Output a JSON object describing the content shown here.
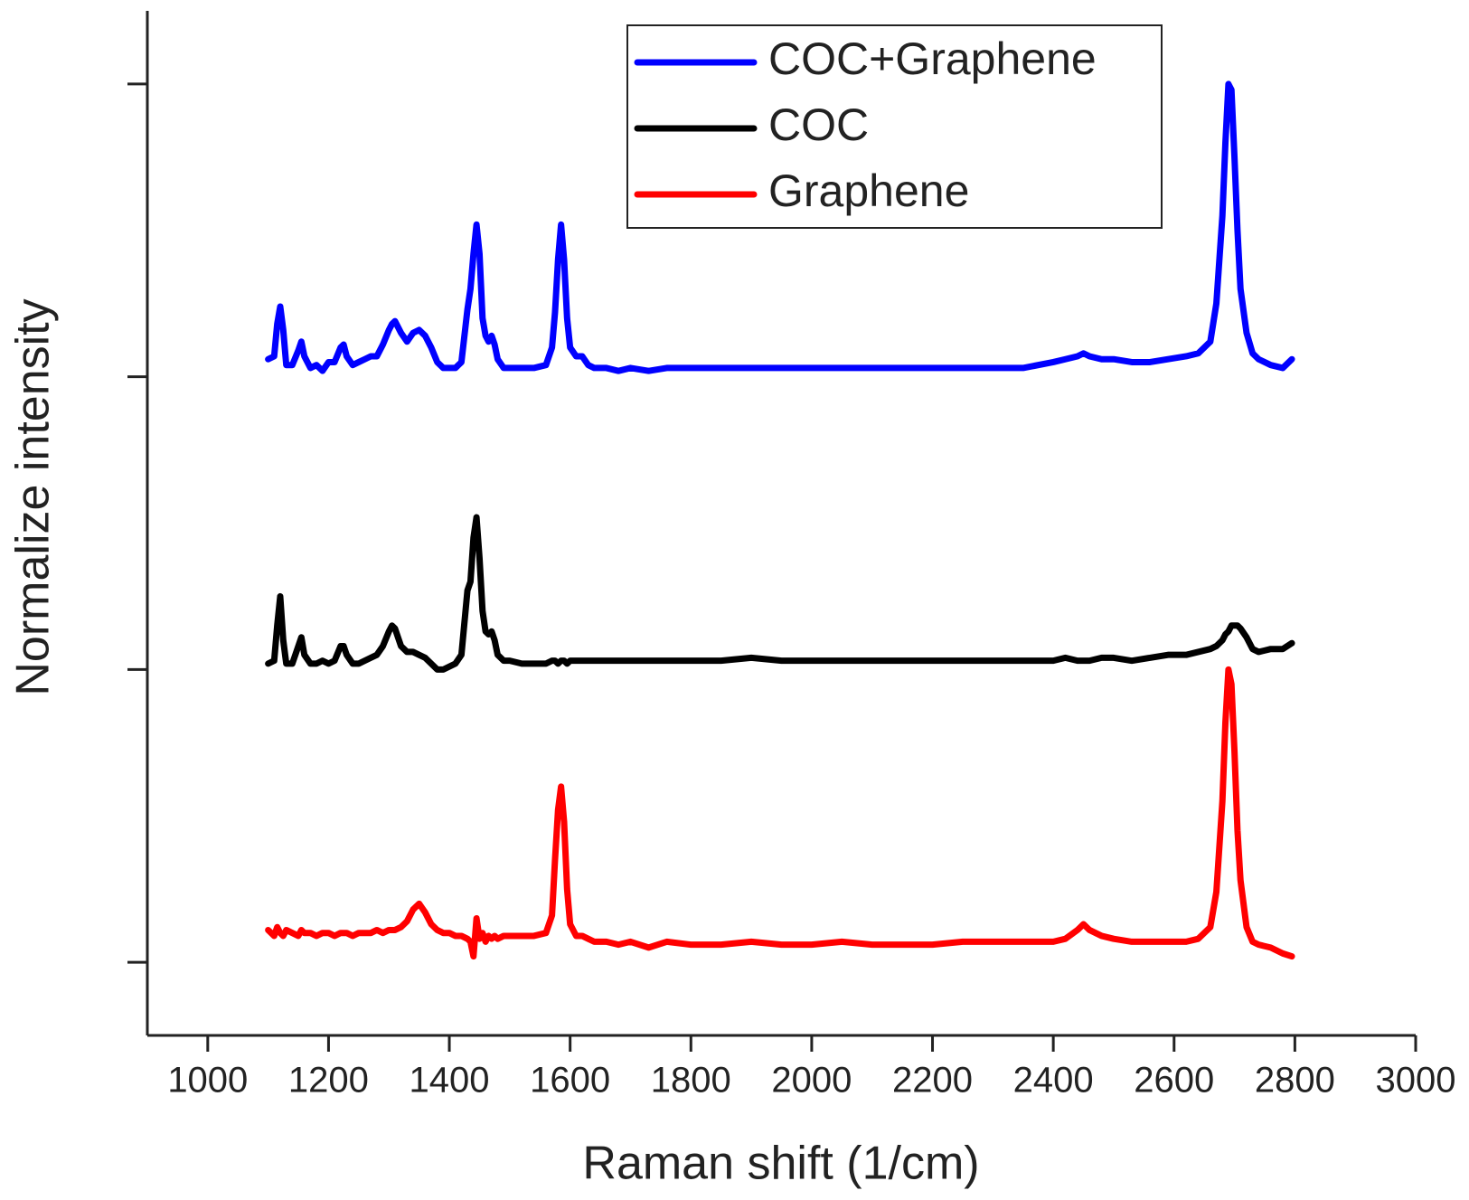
{
  "chart_data": {
    "type": "line",
    "x_label": "Raman shift (1/cm)",
    "y_label": "Normalize intensity",
    "xlim": [
      900,
      3000
    ],
    "xticks": [
      1000,
      1200,
      1400,
      1600,
      1800,
      2000,
      2200,
      2400,
      2600,
      2800,
      3000
    ],
    "ylim": [
      -0.25,
      3.25
    ],
    "yticks": [
      0,
      1,
      2,
      3
    ],
    "yticklabels": false,
    "legend": "upper right",
    "x": [
      1100,
      1110,
      1115,
      1120,
      1125,
      1130,
      1140,
      1150,
      1155,
      1160,
      1170,
      1180,
      1190,
      1200,
      1210,
      1220,
      1225,
      1230,
      1240,
      1250,
      1260,
      1270,
      1280,
      1290,
      1300,
      1305,
      1310,
      1320,
      1330,
      1340,
      1350,
      1360,
      1370,
      1380,
      1390,
      1400,
      1410,
      1420,
      1430,
      1435,
      1440,
      1445,
      1450,
      1455,
      1460,
      1465,
      1470,
      1475,
      1480,
      1490,
      1500,
      1520,
      1540,
      1560,
      1570,
      1575,
      1580,
      1585,
      1590,
      1595,
      1600,
      1610,
      1620,
      1630,
      1640,
      1660,
      1680,
      1700,
      1730,
      1760,
      1800,
      1850,
      1900,
      1950,
      2000,
      2050,
      2100,
      2150,
      2200,
      2250,
      2300,
      2350,
      2400,
      2420,
      2440,
      2450,
      2460,
      2480,
      2500,
      2530,
      2560,
      2590,
      2620,
      2640,
      2660,
      2670,
      2680,
      2685,
      2690,
      2695,
      2700,
      2705,
      2710,
      2720,
      2730,
      2740,
      2760,
      2780,
      2795
    ],
    "series": [
      {
        "name": "COC+Graphene",
        "color": "#0000ff",
        "values": [
          2.06,
          2.07,
          2.18,
          2.24,
          2.16,
          2.04,
          2.04,
          2.09,
          2.12,
          2.07,
          2.03,
          2.04,
          2.02,
          2.05,
          2.05,
          2.1,
          2.11,
          2.07,
          2.04,
          2.05,
          2.06,
          2.07,
          2.07,
          2.11,
          2.16,
          2.18,
          2.19,
          2.15,
          2.12,
          2.15,
          2.16,
          2.14,
          2.1,
          2.05,
          2.03,
          2.03,
          2.03,
          2.05,
          2.23,
          2.3,
          2.42,
          2.52,
          2.42,
          2.2,
          2.14,
          2.12,
          2.14,
          2.11,
          2.06,
          2.03,
          2.03,
          2.03,
          2.03,
          2.04,
          2.1,
          2.22,
          2.4,
          2.52,
          2.4,
          2.2,
          2.1,
          2.07,
          2.07,
          2.04,
          2.03,
          2.03,
          2.02,
          2.03,
          2.02,
          2.03,
          2.03,
          2.03,
          2.03,
          2.03,
          2.03,
          2.03,
          2.03,
          2.03,
          2.03,
          2.03,
          2.03,
          2.03,
          2.05,
          2.06,
          2.07,
          2.08,
          2.07,
          2.06,
          2.06,
          2.05,
          2.05,
          2.06,
          2.07,
          2.08,
          2.12,
          2.25,
          2.55,
          2.8,
          3.0,
          2.98,
          2.75,
          2.5,
          2.3,
          2.15,
          2.08,
          2.06,
          2.04,
          2.03,
          2.06
        ]
      },
      {
        "name": "COC",
        "color": "#000000",
        "values": [
          1.02,
          1.03,
          1.15,
          1.25,
          1.1,
          1.02,
          1.02,
          1.08,
          1.11,
          1.05,
          1.02,
          1.02,
          1.03,
          1.02,
          1.03,
          1.08,
          1.08,
          1.05,
          1.02,
          1.02,
          1.03,
          1.04,
          1.05,
          1.08,
          1.13,
          1.15,
          1.14,
          1.08,
          1.06,
          1.06,
          1.05,
          1.04,
          1.02,
          1.0,
          1.0,
          1.01,
          1.02,
          1.05,
          1.27,
          1.3,
          1.45,
          1.52,
          1.38,
          1.2,
          1.13,
          1.12,
          1.13,
          1.1,
          1.05,
          1.03,
          1.03,
          1.02,
          1.02,
          1.02,
          1.03,
          1.03,
          1.02,
          1.03,
          1.03,
          1.02,
          1.03,
          1.03,
          1.03,
          1.03,
          1.03,
          1.03,
          1.03,
          1.03,
          1.03,
          1.03,
          1.03,
          1.03,
          1.04,
          1.03,
          1.03,
          1.03,
          1.03,
          1.03,
          1.03,
          1.03,
          1.03,
          1.03,
          1.03,
          1.04,
          1.03,
          1.03,
          1.03,
          1.04,
          1.04,
          1.03,
          1.04,
          1.05,
          1.05,
          1.06,
          1.07,
          1.08,
          1.1,
          1.12,
          1.13,
          1.15,
          1.15,
          1.15,
          1.14,
          1.11,
          1.07,
          1.06,
          1.07,
          1.07,
          1.09
        ]
      },
      {
        "name": "Graphene",
        "color": "#ff0000",
        "values": [
          0.11,
          0.09,
          0.12,
          0.1,
          0.09,
          0.11,
          0.1,
          0.09,
          0.11,
          0.1,
          0.1,
          0.09,
          0.1,
          0.1,
          0.09,
          0.1,
          0.1,
          0.1,
          0.09,
          0.1,
          0.1,
          0.1,
          0.11,
          0.1,
          0.11,
          0.11,
          0.11,
          0.12,
          0.14,
          0.18,
          0.2,
          0.17,
          0.13,
          0.11,
          0.1,
          0.1,
          0.09,
          0.09,
          0.08,
          0.07,
          0.02,
          0.15,
          0.08,
          0.1,
          0.07,
          0.09,
          0.08,
          0.09,
          0.08,
          0.09,
          0.09,
          0.09,
          0.09,
          0.1,
          0.16,
          0.35,
          0.52,
          0.6,
          0.48,
          0.25,
          0.13,
          0.09,
          0.09,
          0.08,
          0.07,
          0.07,
          0.06,
          0.07,
          0.05,
          0.07,
          0.06,
          0.06,
          0.07,
          0.06,
          0.06,
          0.07,
          0.06,
          0.06,
          0.06,
          0.07,
          0.07,
          0.07,
          0.07,
          0.08,
          0.11,
          0.13,
          0.11,
          0.09,
          0.08,
          0.07,
          0.07,
          0.07,
          0.07,
          0.08,
          0.12,
          0.24,
          0.55,
          0.82,
          1.0,
          0.95,
          0.72,
          0.45,
          0.28,
          0.12,
          0.07,
          0.06,
          0.05,
          0.03,
          0.02
        ]
      }
    ]
  }
}
